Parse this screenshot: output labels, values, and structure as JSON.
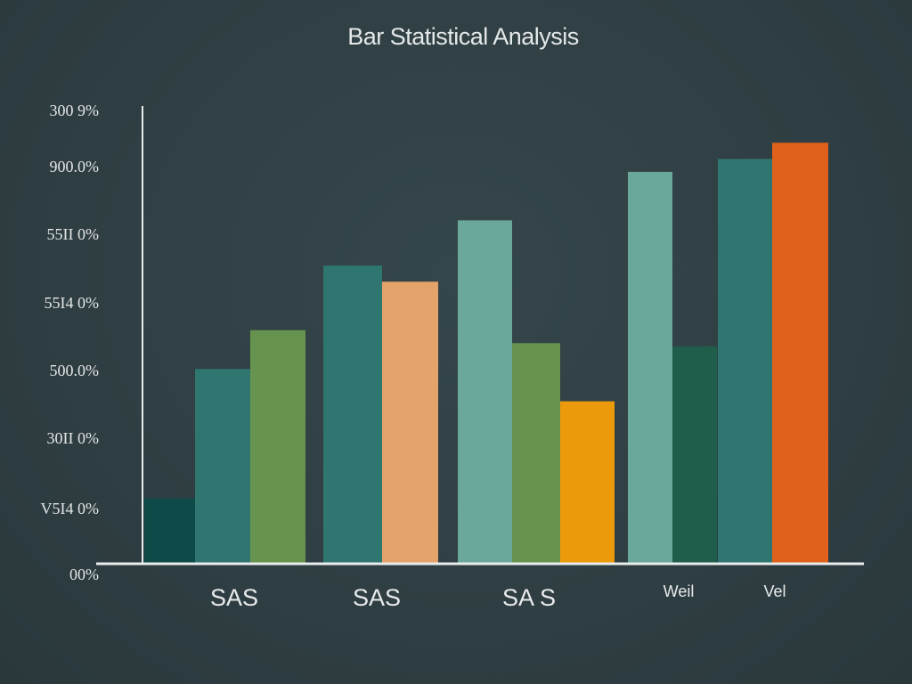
{
  "chart_data": {
    "type": "bar",
    "title": "Bar Statistical Analysis",
    "xlabel": "",
    "ylabel": "",
    "grid": false,
    "legend": "none",
    "y_tick_labels": [
      "00%",
      "V5I4 0%",
      "30II 0%",
      "500.0%",
      "55I4 0%",
      "55II 0%",
      "900.0%",
      "300 9%"
    ],
    "groups": [
      {
        "label": "SAS",
        "bars": [
          {
            "value": 1,
            "color": "#0e4a48"
          },
          {
            "value": 3,
            "color": "#2f7570"
          },
          {
            "value": 3.6,
            "color": "#66934e"
          }
        ]
      },
      {
        "label": "SAS",
        "bars": [
          {
            "value": 4.6,
            "color": "#2f7570"
          },
          {
            "value": 4.35,
            "color": "#e3a36a"
          }
        ]
      },
      {
        "label": "SA S",
        "bars": [
          {
            "value": 5.3,
            "color": "#6aa89c"
          },
          {
            "value": 3.4,
            "color": "#66934e"
          },
          {
            "value": 2.5,
            "color": "#eb9a0c"
          }
        ]
      },
      {
        "label": "Weil",
        "bars": [
          {
            "value": 6.05,
            "color": "#6aa89c"
          },
          {
            "value": 3.35,
            "color": "#1f5e4a"
          }
        ]
      },
      {
        "label": "Vel",
        "bars": [
          {
            "value": 6.25,
            "color": "#2f7570"
          },
          {
            "value": 6.5,
            "color": "#e0611b"
          }
        ]
      }
    ],
    "ylim": [
      0,
      7
    ]
  }
}
